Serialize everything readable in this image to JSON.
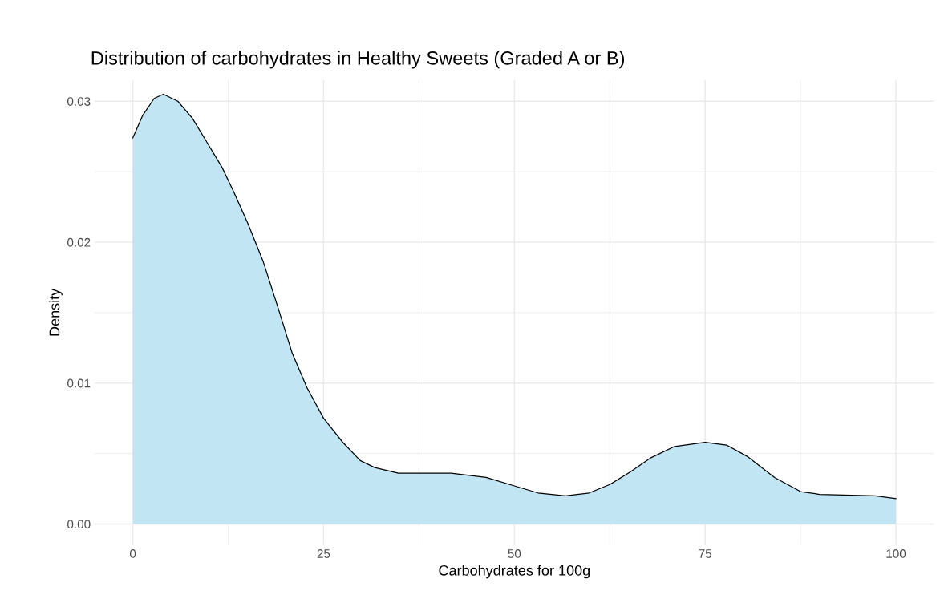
{
  "chart_data": {
    "type": "area",
    "title": "Distribution of carbohydrates in Healthy Sweets (Graded A or B)",
    "xlabel": "Carbohydrates for 100g",
    "ylabel": "Density",
    "series": [
      {
        "color": "#c2e5f4",
        "x": [
          0,
          1.3,
          2.8,
          4,
          5.9,
          7.8,
          9.7,
          11.7,
          13.2,
          15.1,
          17.1,
          19,
          20.9,
          22.8,
          25,
          27.5,
          29.8,
          31.7,
          34.8,
          35.4,
          41.7,
          46.3,
          50,
          53.1,
          56.7,
          59.8,
          62.5,
          65.2,
          67.9,
          71,
          75,
          77.8,
          80.5,
          84.1,
          87.5,
          90,
          97.3,
          100
        ],
        "values": [
          0.0274,
          0.029,
          0.0302,
          0.0305,
          0.03,
          0.0288,
          0.0271,
          0.0253,
          0.0236,
          0.0213,
          0.0186,
          0.0154,
          0.0121,
          0.0097,
          0.0075,
          0.0058,
          0.0045,
          0.004,
          0.0036,
          0.0036,
          0.0036,
          0.0033,
          0.0027,
          0.0022,
          0.002,
          0.0022,
          0.0028,
          0.0037,
          0.0047,
          0.0055,
          0.0058,
          0.0056,
          0.0048,
          0.0033,
          0.0023,
          0.0021,
          0.002,
          0.0018
        ]
      }
    ],
    "xlim": [
      -5,
      105
    ],
    "ylim": [
      -0.0015,
      0.0315
    ],
    "xticks": [
      0,
      {
        "value": 12.5,
        "label": null
      },
      25,
      {
        "value": 37.5,
        "label": null
      },
      50,
      {
        "value": 62.5,
        "label": null
      },
      75,
      {
        "value": 87.5,
        "label": null
      },
      100
    ],
    "yticks": [
      {
        "value": 0,
        "label": "0.00"
      },
      {
        "value": 0.005,
        "label": null
      },
      {
        "value": 0.01,
        "label": "0.01"
      },
      {
        "value": 0.015,
        "label": null
      },
      {
        "value": 0.02,
        "label": "0.02"
      },
      {
        "value": 0.025,
        "label": null
      },
      {
        "value": 0.03,
        "label": "0.03"
      }
    ],
    "grid": true
  }
}
